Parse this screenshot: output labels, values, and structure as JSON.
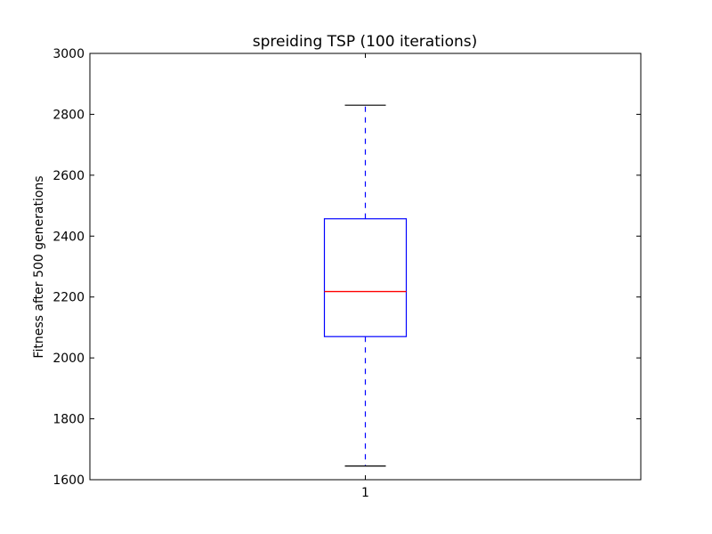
{
  "chart_data": {
    "type": "box",
    "title": "spreiding TSP (100 iterations)",
    "xlabel": "",
    "ylabel": "Fitness after 500 generations",
    "ylim": [
      1600,
      3000
    ],
    "yticks": [
      "1600",
      "1800",
      "2000",
      "2200",
      "2400",
      "2600",
      "2800",
      "3000"
    ],
    "categories": [
      "1"
    ],
    "boxes": [
      {
        "category": "1",
        "whisker_low": 1645,
        "q1": 2070,
        "median": 2218,
        "q3": 2457,
        "whisker_high": 2830
      }
    ],
    "grid": false,
    "legend": "none",
    "colors": {
      "box": "#0000ff",
      "median": "#ff0000",
      "whisker": "#0000ff",
      "cap": "#000000",
      "axes": "#000000"
    }
  }
}
